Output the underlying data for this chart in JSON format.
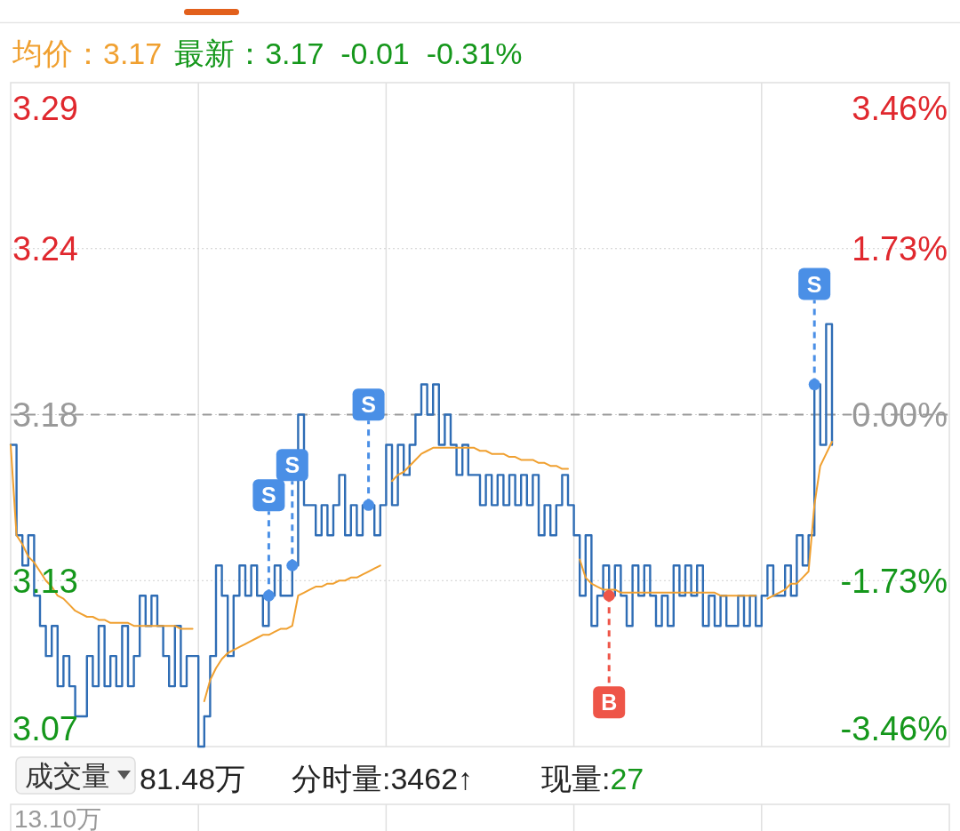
{
  "chart_data": {
    "type": "line",
    "categories": [
      null,
      null,
      null,
      null,
      null,
      null,
      null,
      null,
      null,
      null,
      null,
      null,
      null,
      null,
      null,
      null,
      null,
      null,
      null,
      null,
      null,
      null,
      null,
      null,
      null,
      null,
      null,
      null,
      null,
      null,
      null,
      null,
      null,
      null,
      null,
      null,
      null,
      null,
      null,
      null,
      null,
      null,
      null,
      null,
      null,
      null,
      null,
      null,
      null,
      null,
      null,
      null,
      null,
      null,
      null,
      null,
      null,
      null,
      null,
      null,
      null,
      null,
      null,
      null,
      null,
      null,
      null,
      null,
      null,
      null,
      null,
      null,
      null,
      null,
      null,
      null,
      null,
      null,
      null,
      null,
      null,
      null,
      null,
      null,
      null,
      null,
      null,
      null,
      null,
      null,
      null,
      null,
      null,
      null,
      null,
      null,
      null,
      null,
      null,
      null,
      null,
      null,
      null,
      null,
      null,
      null,
      null,
      null,
      null,
      null,
      null,
      null,
      null,
      null,
      null,
      null,
      null,
      null,
      null,
      null,
      null,
      null,
      null,
      null,
      null,
      null,
      null,
      null,
      null,
      null,
      null,
      null,
      null,
      null,
      null,
      null,
      null,
      null,
      null,
      null,
      null
    ],
    "series": [
      {
        "type": "step",
        "color": "#2f6db5",
        "values": [
          3.17,
          3.14,
          3.13,
          3.14,
          3.12,
          3.11,
          3.1,
          3.11,
          3.09,
          3.1,
          3.09,
          3.08,
          3.08,
          3.1,
          3.09,
          3.11,
          3.09,
          3.1,
          3.09,
          3.11,
          3.09,
          3.1,
          3.12,
          3.11,
          3.12,
          3.11,
          3.1,
          3.09,
          3.11,
          3.09,
          3.1,
          3.1,
          3.07,
          3.08,
          3.1,
          3.13,
          3.12,
          3.1,
          3.12,
          3.13,
          3.12,
          3.13,
          3.12,
          3.11,
          3.12,
          3.13,
          3.12,
          3.12,
          3.13,
          3.18,
          3.15,
          3.15,
          3.14,
          3.15,
          3.14,
          3.15,
          3.16,
          3.14,
          3.15,
          3.14,
          3.15,
          3.15,
          3.14,
          3.15,
          3.17,
          3.15,
          3.17,
          3.16,
          3.17,
          3.18,
          3.19,
          3.18,
          3.19,
          3.17,
          3.18,
          3.17,
          3.16,
          3.17,
          3.16,
          3.16,
          3.15,
          3.16,
          3.15,
          3.16,
          3.15,
          3.16,
          3.15,
          3.16,
          3.15,
          3.16,
          3.14,
          3.15,
          3.14,
          3.15,
          3.16,
          3.15,
          3.14,
          3.12,
          3.14,
          3.11,
          3.12,
          3.13,
          3.12,
          3.13,
          3.12,
          3.11,
          3.13,
          3.12,
          3.13,
          3.12,
          3.11,
          3.12,
          3.11,
          3.13,
          3.12,
          3.13,
          3.12,
          3.13,
          3.11,
          3.12,
          3.11,
          3.12,
          3.11,
          3.11,
          3.12,
          3.11,
          3.12,
          3.11,
          3.12,
          3.13,
          3.12,
          3.12,
          3.13,
          3.12,
          3.14,
          3.13,
          3.14,
          3.19,
          3.17,
          3.21,
          3.17
        ]
      },
      {
        "color": "#f0a030",
        "values": [
          3.17,
          3.14,
          3.137,
          3.133,
          3.131,
          3.128,
          3.125,
          3.123,
          3.12,
          3.119,
          3.117,
          3.115,
          3.114,
          3.113,
          3.113,
          3.112,
          3.112,
          3.111,
          3.111,
          3.111,
          3.111,
          3.11,
          3.11,
          3.11,
          3.11,
          3.11,
          3.11,
          3.11,
          3.11,
          3.109,
          3.109,
          3.109,
          null,
          3.085,
          3.092,
          3.096,
          3.099,
          3.101,
          3.102,
          3.103,
          3.104,
          3.105,
          3.106,
          3.107,
          3.107,
          3.108,
          3.109,
          3.109,
          3.11,
          3.12,
          3.121,
          3.122,
          3.123,
          3.123,
          3.124,
          3.124,
          3.125,
          3.125,
          3.126,
          3.126,
          3.127,
          3.128,
          3.129,
          3.13,
          null,
          3.158,
          3.16,
          3.161,
          3.163,
          3.165,
          3.167,
          3.168,
          3.169,
          3.169,
          3.169,
          3.169,
          3.169,
          3.169,
          3.169,
          3.169,
          3.168,
          3.168,
          3.167,
          3.167,
          3.167,
          3.166,
          3.166,
          3.165,
          3.165,
          3.165,
          3.164,
          3.164,
          3.163,
          3.163,
          3.162,
          3.162,
          null,
          3.132,
          3.126,
          3.124,
          3.123,
          3.122,
          3.122,
          3.122,
          3.121,
          3.121,
          3.121,
          3.121,
          3.121,
          3.121,
          3.121,
          3.121,
          3.121,
          3.121,
          3.121,
          3.121,
          3.121,
          3.121,
          3.121,
          3.121,
          3.121,
          3.12,
          3.12,
          3.12,
          3.12,
          3.12,
          3.12,
          3.12,
          null,
          3.119,
          3.12,
          3.121,
          3.122,
          3.124,
          3.124,
          3.126,
          3.128,
          3.15,
          3.163,
          3.167,
          3.171
        ]
      },
      {
        "type": "scatter",
        "name": "S",
        "color": "#4a8fe6",
        "values": [
          null,
          null,
          null,
          null,
          null,
          null,
          null,
          null,
          null,
          null,
          null,
          null,
          null,
          null,
          null,
          null,
          null,
          null,
          null,
          null,
          null,
          null,
          null,
          null,
          null,
          null,
          null,
          null,
          null,
          null,
          null,
          null,
          null,
          null,
          null,
          null,
          null,
          null,
          null,
          null,
          null,
          null,
          null,
          null,
          3.12,
          null,
          null,
          null,
          3.13,
          null,
          null,
          null,
          null,
          null,
          null,
          null,
          null,
          null,
          null,
          null,
          null,
          3.15,
          null,
          null,
          null,
          null,
          null,
          null,
          null,
          null,
          null,
          null,
          null,
          null,
          null,
          null,
          null,
          null,
          null,
          null,
          null,
          null,
          null,
          null,
          null,
          null,
          null,
          null,
          null,
          null,
          null,
          null,
          null,
          null,
          null,
          null,
          null,
          null,
          null,
          null,
          null,
          null,
          null,
          null,
          null,
          null,
          null,
          null,
          null,
          null,
          null,
          null,
          null,
          null,
          null,
          null,
          null,
          null,
          null,
          null,
          null,
          null,
          null,
          null,
          null,
          null,
          null,
          null,
          null,
          null,
          null,
          null,
          null,
          null,
          null,
          null,
          null,
          3.19,
          null,
          null,
          null
        ]
      },
      {
        "type": "scatter",
        "name": "B",
        "color": "#ee5548",
        "values": [
          null,
          null,
          null,
          null,
          null,
          null,
          null,
          null,
          null,
          null,
          null,
          null,
          null,
          null,
          null,
          null,
          null,
          null,
          null,
          null,
          null,
          null,
          null,
          null,
          null,
          null,
          null,
          null,
          null,
          null,
          null,
          null,
          null,
          null,
          null,
          null,
          null,
          null,
          null,
          null,
          null,
          null,
          null,
          null,
          null,
          null,
          null,
          null,
          null,
          null,
          null,
          null,
          null,
          null,
          null,
          null,
          null,
          null,
          null,
          null,
          null,
          null,
          null,
          null,
          null,
          null,
          null,
          null,
          null,
          null,
          null,
          null,
          null,
          null,
          null,
          null,
          null,
          null,
          null,
          null,
          null,
          null,
          null,
          null,
          null,
          null,
          null,
          null,
          null,
          null,
          null,
          null,
          null,
          null,
          null,
          null,
          null,
          null,
          null,
          null,
          null,
          null,
          3.12,
          null,
          null,
          null,
          null,
          null,
          null,
          null,
          null,
          null,
          null,
          null,
          null,
          null,
          null,
          null,
          null,
          null,
          null,
          null,
          null,
          null,
          null,
          null,
          null,
          null,
          null,
          null,
          null,
          null,
          null,
          null,
          null,
          null,
          null,
          null,
          null,
          null,
          null
        ]
      }
    ],
    "ylim": [
      3.07,
      3.29
    ],
    "yticks": [
      3.29,
      {
        "value": 3.235,
        "label": "3.24"
      },
      3.18,
      {
        "value": 3.125,
        "label": "3.13"
      },
      3.07
    ],
    "y2lim": [
      -3.46,
      3.46
    ],
    "y2ticks": [
      {
        "value": 3.46,
        "label": "3.46%"
      },
      {
        "value": 1.73,
        "label": "1.73%"
      },
      {
        "value": 0,
        "label": "0.00%"
      },
      {
        "value": -1.73,
        "label": "-1.73%"
      },
      {
        "value": -3.46,
        "label": "-3.46%"
      }
    ],
    "ref_lines": [
      {
        "axis": "y",
        "value": 3.18,
        "color": "#9a9a9a",
        "line_style": "dashed"
      }
    ],
    "grid": true,
    "annotations": [
      "均价：3.17",
      "最新：3.17  -0.01  -0.31%",
      "成交量",
      "81.48万",
      "分时量:3462↑",
      "现量:",
      "27",
      "13.10万"
    ]
  }
}
